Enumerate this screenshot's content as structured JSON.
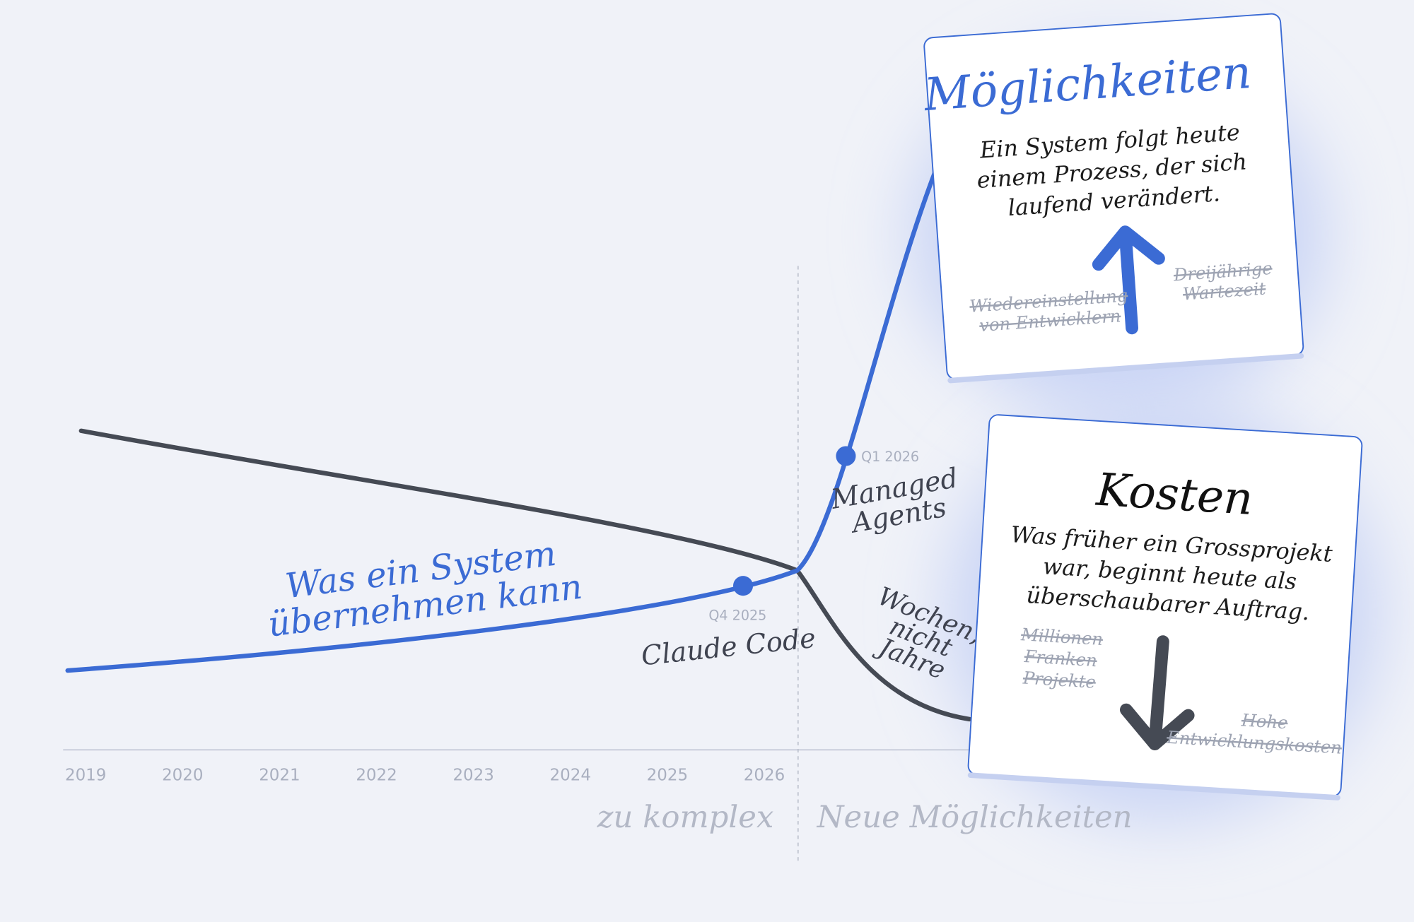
{
  "axis": {
    "years": [
      "2019",
      "2020",
      "2021",
      "2022",
      "2023",
      "2024",
      "2025",
      "2026"
    ]
  },
  "zones": {
    "before": "zu komplex",
    "after": "Neue Möglichkeiten"
  },
  "curve_label": [
    "Was ein System",
    "übernehmen kann"
  ],
  "milestones": [
    {
      "date": "Q4 2025",
      "label": [
        "Claude Code"
      ]
    },
    {
      "date": "Q1 2026",
      "label": [
        "Managed",
        "Agents"
      ]
    }
  ],
  "drop_note": [
    "Wochen,",
    "nicht",
    "Jahre"
  ],
  "cards": [
    {
      "title": "Möglichkeiten",
      "body": [
        "Ein System folgt heute",
        "einem Prozess, der sich",
        "laufend verändert."
      ],
      "struck": [
        [
          "Wiedereinstellung",
          "von Entwicklern"
        ],
        [
          "Dreijährige",
          "Wartezeit"
        ]
      ]
    },
    {
      "title": "Kosten",
      "body": [
        "Was früher ein Grossprojekt",
        "war, beginnt heute als",
        "überschaubarer Auftrag."
      ],
      "struck": [
        [
          "Millionen",
          "Franken",
          "Projekte"
        ],
        [
          "Hohe",
          "Entwicklungskosten"
        ]
      ]
    }
  ]
}
